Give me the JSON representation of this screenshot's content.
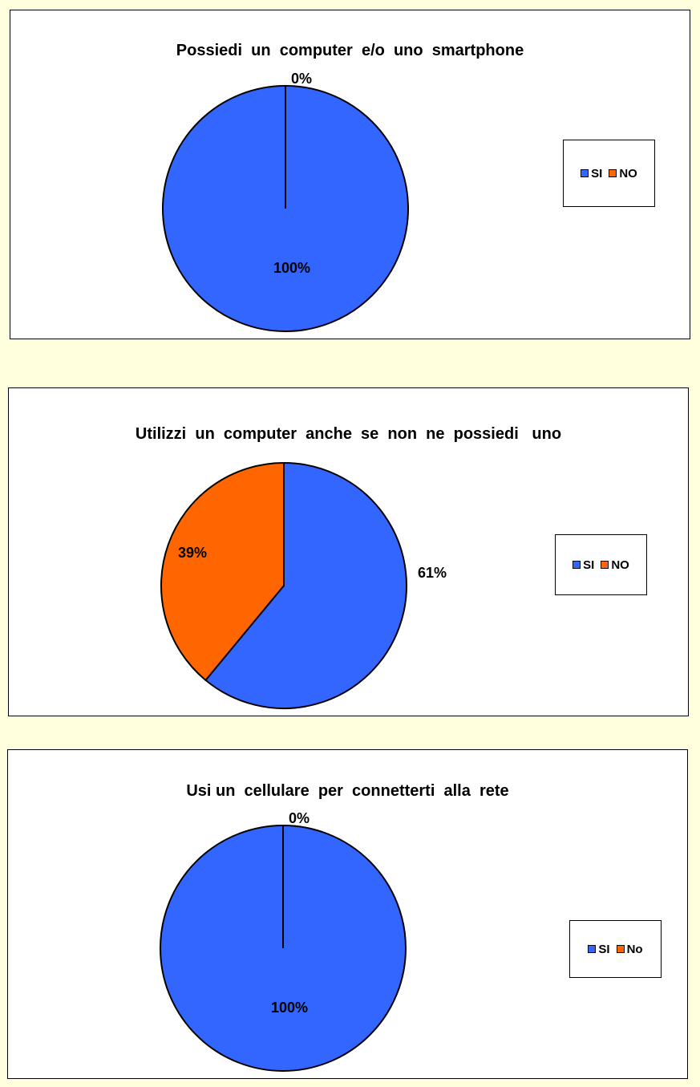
{
  "colors": {
    "si": "#3366ff",
    "no": "#ff6600",
    "background": "#ffffdd"
  },
  "chart_data": [
    {
      "type": "pie",
      "title": "Possiedi  un  computer  e/o  uno  smartphone",
      "categories": [
        "SI",
        "NO"
      ],
      "values": [
        100,
        0
      ],
      "labels": [
        "100%",
        "0%"
      ],
      "legend": {
        "placement": "right",
        "entries": [
          "SI",
          "NO"
        ]
      }
    },
    {
      "type": "pie",
      "title": "Utilizzi  un  computer  anche  se  non  ne  possiedi   uno",
      "categories": [
        "SI",
        "NO"
      ],
      "values": [
        61,
        39
      ],
      "labels": [
        "61%",
        "39%"
      ],
      "legend": {
        "placement": "right",
        "entries": [
          "SI",
          "NO"
        ]
      }
    },
    {
      "type": "pie",
      "title": "Usi un  cellulare  per  connetterti  alla  rete",
      "categories": [
        "SI",
        "No"
      ],
      "values": [
        100,
        0
      ],
      "labels": [
        "100%",
        "0%"
      ],
      "legend": {
        "placement": "right",
        "entries": [
          "SI",
          "No"
        ]
      }
    }
  ]
}
